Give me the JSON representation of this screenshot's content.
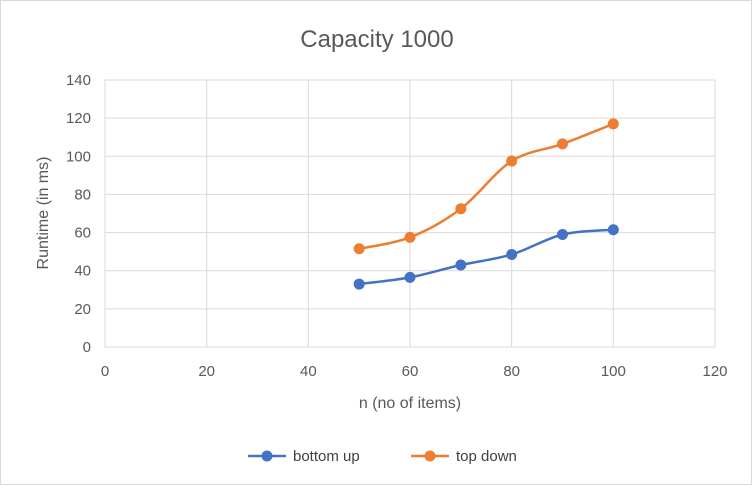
{
  "chart_data": {
    "type": "scatter",
    "title": "Capacity 1000",
    "xlabel": "n (no of items)",
    "ylabel": "Runtime (in ms)",
    "xlim": [
      0,
      120
    ],
    "ylim": [
      0,
      140
    ],
    "x_ticks": [
      0,
      20,
      40,
      60,
      80,
      100,
      120
    ],
    "y_ticks": [
      0,
      20,
      40,
      60,
      80,
      100,
      120,
      140
    ],
    "grid": true,
    "smooth_lines": true,
    "legend_position": "bottom",
    "series": [
      {
        "name": "bottom up",
        "color": "#4472c4",
        "x": [
          50,
          60,
          70,
          80,
          90,
          100
        ],
        "y": [
          33,
          36.5,
          43,
          48.5,
          59,
          61.5
        ]
      },
      {
        "name": "top down",
        "color": "#ed7d31",
        "x": [
          50,
          60,
          70,
          80,
          90,
          100
        ],
        "y": [
          51.5,
          57.5,
          72.5,
          97.5,
          106.5,
          117
        ]
      }
    ]
  }
}
